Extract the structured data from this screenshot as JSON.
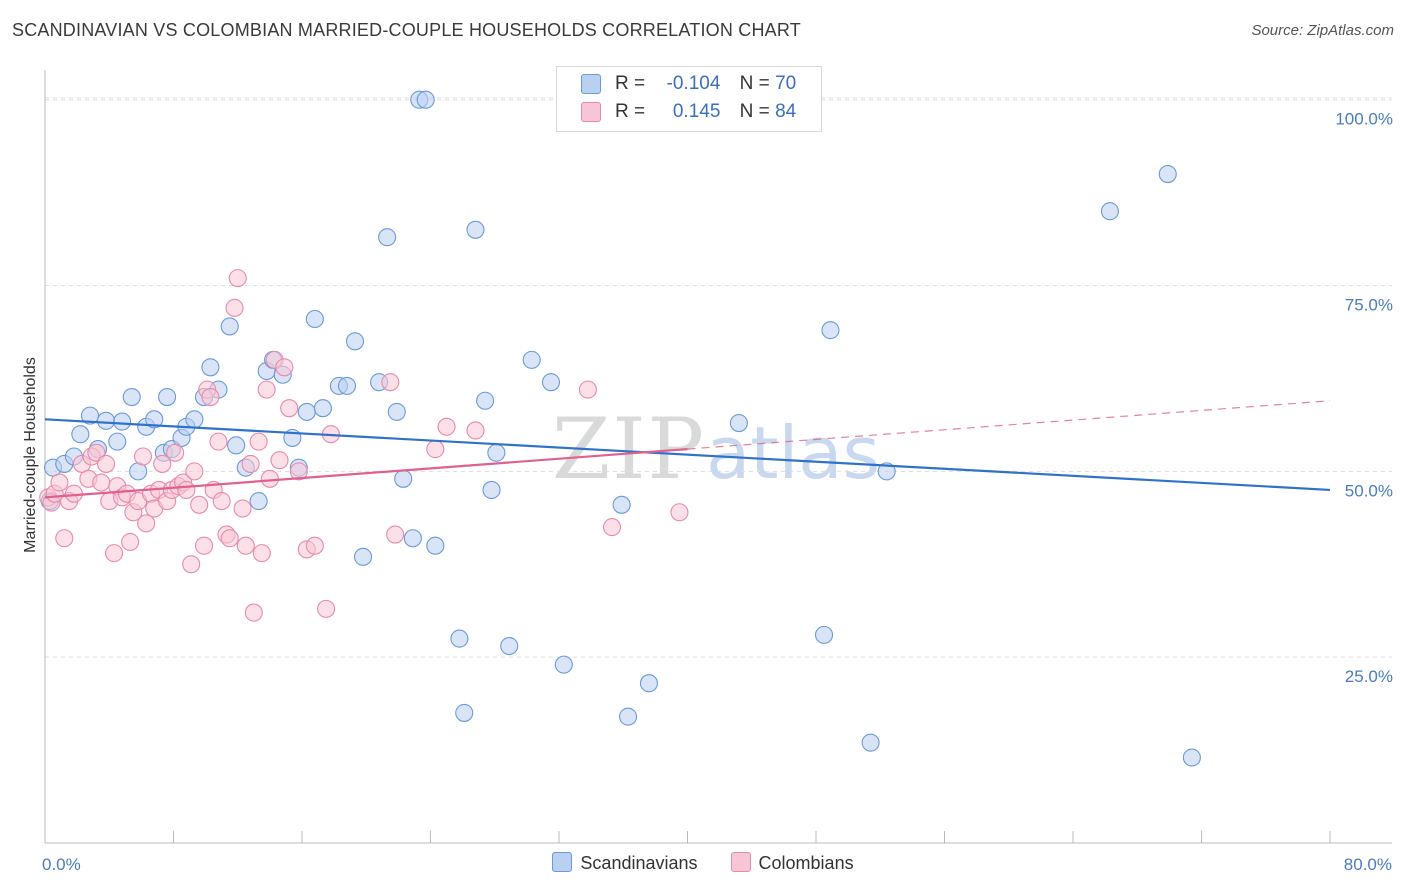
{
  "header": {
    "title": "SCANDINAVIAN VS COLOMBIAN MARRIED-COUPLE HOUSEHOLDS CORRELATION CHART",
    "source": "Source: ZipAtlas.com"
  },
  "legend": {
    "rows": [
      {
        "r_label": "R =",
        "r_value": "-0.104",
        "n_label": "N =",
        "n_value": "70"
      },
      {
        "r_label": "R =",
        "r_value": "0.145",
        "n_label": "N =",
        "n_value": "84"
      }
    ]
  },
  "bottom_legend": {
    "items": [
      {
        "label": "Scandinavians"
      },
      {
        "label": "Colombians"
      }
    ]
  },
  "watermark": {
    "zip": "ZIP",
    "atlas": "atlas"
  },
  "colors": {
    "blue_fill": "#b9d0f0",
    "blue_stroke": "#6a9ad8",
    "blue_line": "#2f72cc",
    "pink_fill": "#f7c6d6",
    "pink_stroke": "#e98aab",
    "pink_line": "#e0608e",
    "grid": "#dddddd",
    "tick_text": "#4a7cc0"
  },
  "chart_data": {
    "type": "scatter",
    "title": "SCANDINAVIAN VS COLOMBIAN MARRIED-COUPLE HOUSEHOLDS CORRELATION CHART",
    "xlabel": "",
    "ylabel": "Married-couple Households",
    "xlim": [
      0,
      80
    ],
    "ylim": [
      0,
      104
    ],
    "x_tick_labels": [
      {
        "value": 0,
        "label": "0.0%"
      },
      {
        "value": 80,
        "label": "80.0%"
      }
    ],
    "y_tick_labels": [
      {
        "value": 25,
        "label": "25.0%"
      },
      {
        "value": 50,
        "label": "50.0%"
      },
      {
        "value": 75,
        "label": "75.0%"
      },
      {
        "value": 100,
        "label": "100.0%"
      }
    ],
    "grid": true,
    "series": [
      {
        "name": "Scandinavians",
        "color": "blue",
        "trend": {
          "x": [
            0,
            80
          ],
          "y": [
            57.0,
            47.5
          ],
          "dashed_from": null
        },
        "points": [
          [
            0.3,
            46
          ],
          [
            0.5,
            50.5
          ],
          [
            1.2,
            51
          ],
          [
            1.8,
            52
          ],
          [
            2.2,
            55
          ],
          [
            2.8,
            57.5
          ],
          [
            3.3,
            53
          ],
          [
            3.8,
            56.8
          ],
          [
            4.5,
            54
          ],
          [
            4.8,
            56.7
          ],
          [
            5.4,
            60
          ],
          [
            5.8,
            50
          ],
          [
            6.3,
            56
          ],
          [
            6.8,
            57
          ],
          [
            7.4,
            52.5
          ],
          [
            7.6,
            60
          ],
          [
            7.9,
            53
          ],
          [
            8.5,
            54.5
          ],
          [
            8.8,
            56
          ],
          [
            9.3,
            57
          ],
          [
            9.9,
            60
          ],
          [
            10.3,
            64
          ],
          [
            10.8,
            61
          ],
          [
            11.5,
            69.5
          ],
          [
            11.9,
            53.5
          ],
          [
            12.5,
            50.5
          ],
          [
            13.3,
            46
          ],
          [
            13.8,
            63.5
          ],
          [
            14.2,
            65
          ],
          [
            14.8,
            63
          ],
          [
            15.4,
            54.5
          ],
          [
            15.8,
            50.5
          ],
          [
            16.3,
            58
          ],
          [
            16.8,
            70.5
          ],
          [
            17.3,
            58.5
          ],
          [
            18.3,
            61.5
          ],
          [
            18.8,
            61.5
          ],
          [
            19.3,
            67.5
          ],
          [
            19.8,
            38.5
          ],
          [
            20.8,
            62
          ],
          [
            21.3,
            81.5
          ],
          [
            21.9,
            58
          ],
          [
            22.3,
            49
          ],
          [
            22.9,
            41
          ],
          [
            23.3,
            100
          ],
          [
            23.7,
            100
          ],
          [
            24.3,
            40
          ],
          [
            25.8,
            27.5
          ],
          [
            26.1,
            17.5
          ],
          [
            26.8,
            82.5
          ],
          [
            27.4,
            59.5
          ],
          [
            27.8,
            47.5
          ],
          [
            28.1,
            52.5
          ],
          [
            28.9,
            26.5
          ],
          [
            30.3,
            65
          ],
          [
            31.5,
            62
          ],
          [
            32.3,
            24
          ],
          [
            35.9,
            45.5
          ],
          [
            36.3,
            17
          ],
          [
            37.6,
            21.5
          ],
          [
            43.2,
            56.5
          ],
          [
            48.5,
            28
          ],
          [
            48.9,
            69
          ],
          [
            51.4,
            13.5
          ],
          [
            52.4,
            50
          ],
          [
            66.3,
            85
          ],
          [
            69.9,
            90
          ],
          [
            71.4,
            11.5
          ]
        ]
      },
      {
        "name": "Colombians",
        "color": "pink",
        "trend": {
          "x": [
            0,
            80
          ],
          "y": [
            46.5,
            59.5
          ],
          "dashed_from": 40
        },
        "points": [
          [
            0.2,
            46.5
          ],
          [
            0.4,
            45.8
          ],
          [
            0.6,
            47
          ],
          [
            0.9,
            48.5
          ],
          [
            1.2,
            41
          ],
          [
            1.5,
            46
          ],
          [
            1.8,
            47
          ],
          [
            2.3,
            51
          ],
          [
            2.7,
            49
          ],
          [
            2.9,
            52
          ],
          [
            3.2,
            52.5
          ],
          [
            3.5,
            48.5
          ],
          [
            3.8,
            51
          ],
          [
            4.0,
            46
          ],
          [
            4.3,
            39
          ],
          [
            4.5,
            48
          ],
          [
            4.8,
            46.5
          ],
          [
            5.1,
            47
          ],
          [
            5.3,
            40.5
          ],
          [
            5.5,
            44.5
          ],
          [
            5.8,
            46
          ],
          [
            6.1,
            52
          ],
          [
            6.3,
            43
          ],
          [
            6.6,
            47
          ],
          [
            6.8,
            45
          ],
          [
            7.1,
            47.5
          ],
          [
            7.3,
            51
          ],
          [
            7.6,
            46
          ],
          [
            7.9,
            47.5
          ],
          [
            8.1,
            52.5
          ],
          [
            8.3,
            48
          ],
          [
            8.6,
            48.5
          ],
          [
            8.8,
            47.5
          ],
          [
            9.1,
            37.5
          ],
          [
            9.3,
            50
          ],
          [
            9.6,
            45.5
          ],
          [
            9.9,
            40
          ],
          [
            10.1,
            61
          ],
          [
            10.3,
            60
          ],
          [
            10.5,
            47.5
          ],
          [
            10.8,
            54
          ],
          [
            11.0,
            46
          ],
          [
            11.3,
            41.5
          ],
          [
            11.5,
            41
          ],
          [
            11.8,
            72
          ],
          [
            12.0,
            76
          ],
          [
            12.3,
            45
          ],
          [
            12.5,
            40
          ],
          [
            12.8,
            51
          ],
          [
            13.0,
            31
          ],
          [
            13.3,
            54
          ],
          [
            13.5,
            39
          ],
          [
            13.8,
            61
          ],
          [
            14.0,
            49
          ],
          [
            14.3,
            65
          ],
          [
            14.6,
            51.5
          ],
          [
            14.9,
            64
          ],
          [
            15.2,
            58.5
          ],
          [
            15.8,
            50
          ],
          [
            16.3,
            39.5
          ],
          [
            16.8,
            40
          ],
          [
            17.5,
            31.5
          ],
          [
            17.8,
            55
          ],
          [
            21.5,
            62
          ],
          [
            21.8,
            41.5
          ],
          [
            24.3,
            53
          ],
          [
            25.0,
            56
          ],
          [
            26.8,
            55.5
          ],
          [
            33.8,
            61
          ],
          [
            35.3,
            42.5
          ],
          [
            39.5,
            44.5
          ]
        ]
      }
    ]
  },
  "axis": {
    "y_label": "Married-couple Households"
  }
}
